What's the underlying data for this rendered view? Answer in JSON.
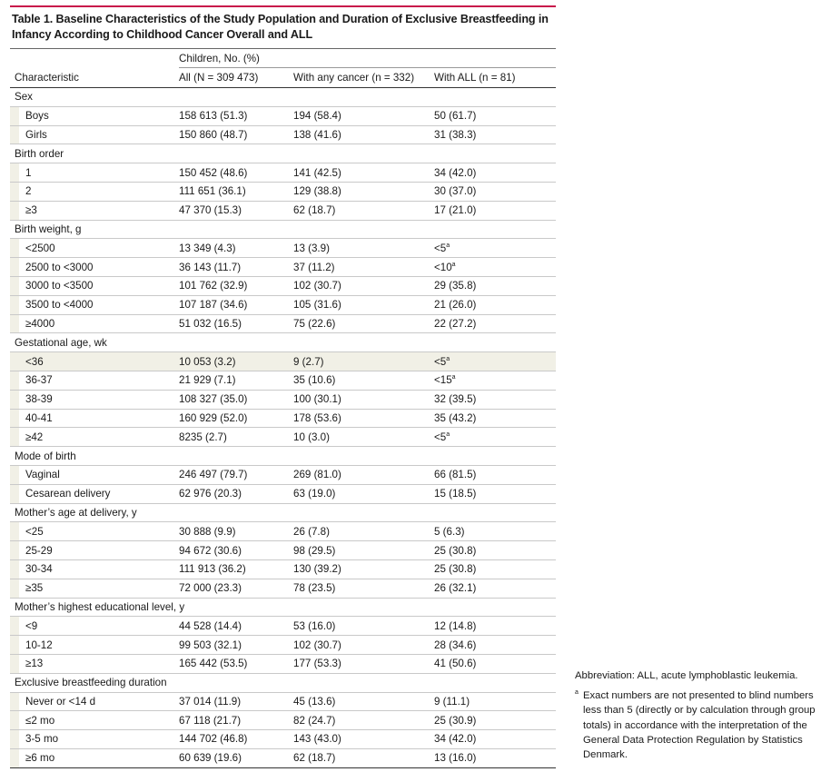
{
  "title": "Table 1. Baseline Characteristics of the Study Population and Duration of Exclusive Breastfeeding in Infancy According to Childhood Cancer Overall and ALL",
  "header": {
    "group": "Children, No. (%)",
    "characteristic": "Characteristic",
    "col1": "All (N = 309 473)",
    "col2": "With any cancer (n = 332)",
    "col3": "With ALL (n = 81)"
  },
  "rows": [
    {
      "type": "section",
      "label": "Sex"
    },
    {
      "type": "item",
      "label": "Boys",
      "v1": "158 613 (51.3)",
      "v2": "194 (58.4)",
      "v3": "50 (61.7)"
    },
    {
      "type": "item",
      "label": "Girls",
      "v1": "150 860 (48.7)",
      "v2": "138 (41.6)",
      "v3": "31 (38.3)"
    },
    {
      "type": "section",
      "label": "Birth order"
    },
    {
      "type": "item",
      "label": "1",
      "v1": "150 452 (48.6)",
      "v2": "141 (42.5)",
      "v3": "34 (42.0)"
    },
    {
      "type": "item",
      "label": "2",
      "v1": "111 651 (36.1)",
      "v2": "129 (38.8)",
      "v3": "30 (37.0)"
    },
    {
      "type": "item",
      "label": "≥3",
      "v1": "47 370 (15.3)",
      "v2": "62 (18.7)",
      "v3": "17 (21.0)"
    },
    {
      "type": "section",
      "label": "Birth weight, g"
    },
    {
      "type": "item",
      "label": "<2500",
      "v1": "13 349 (4.3)",
      "v2": "13 (3.9)",
      "v3": "<5",
      "v3sup": "a"
    },
    {
      "type": "item",
      "label": "2500 to <3000",
      "v1": "36 143 (11.7)",
      "v2": "37 (11.2)",
      "v3": "<10",
      "v3sup": "a"
    },
    {
      "type": "item",
      "label": "3000 to <3500",
      "v1": "101 762 (32.9)",
      "v2": "102 (30.7)",
      "v3": "29 (35.8)"
    },
    {
      "type": "item",
      "label": "3500 to <4000",
      "v1": "107 187 (34.6)",
      "v2": "105 (31.6)",
      "v3": "21 (26.0)"
    },
    {
      "type": "item",
      "label": "≥4000",
      "v1": "51 032 (16.5)",
      "v2": "75 (22.6)",
      "v3": "22 (27.2)"
    },
    {
      "type": "section",
      "label": "Gestational age, wk"
    },
    {
      "type": "item",
      "shade": true,
      "label": "<36",
      "v1": "10 053 (3.2)",
      "v2": "9 (2.7)",
      "v3": "<5",
      "v3sup": "a"
    },
    {
      "type": "item",
      "label": "36-37",
      "v1": "21 929 (7.1)",
      "v2": "35 (10.6)",
      "v3": "<15",
      "v3sup": "a"
    },
    {
      "type": "item",
      "label": "38-39",
      "v1": "108 327 (35.0)",
      "v2": "100 (30.1)",
      "v3": "32 (39.5)"
    },
    {
      "type": "item",
      "label": "40-41",
      "v1": "160 929 (52.0)",
      "v2": "178 (53.6)",
      "v3": "35 (43.2)"
    },
    {
      "type": "item",
      "label": "≥42",
      "v1": "8235 (2.7)",
      "v2": "10 (3.0)",
      "v3": "<5",
      "v3sup": "a"
    },
    {
      "type": "section",
      "label": "Mode of birth"
    },
    {
      "type": "item",
      "label": "Vaginal",
      "v1": "246 497 (79.7)",
      "v2": "269 (81.0)",
      "v3": "66 (81.5)"
    },
    {
      "type": "item",
      "label": "Cesarean delivery",
      "v1": "62 976 (20.3)",
      "v2": "63 (19.0)",
      "v3": "15 (18.5)"
    },
    {
      "type": "section",
      "label": "Mother’s age at delivery, y"
    },
    {
      "type": "item",
      "label": "<25",
      "v1": "30 888 (9.9)",
      "v2": "26 (7.8)",
      "v3": "5 (6.3)"
    },
    {
      "type": "item",
      "label": "25-29",
      "v1": "94 672 (30.6)",
      "v2": "98 (29.5)",
      "v3": "25 (30.8)"
    },
    {
      "type": "item",
      "label": "30-34",
      "v1": "111 913 (36.2)",
      "v2": "130 (39.2)",
      "v3": "25 (30.8)"
    },
    {
      "type": "item",
      "label": "≥35",
      "v1": "72 000 (23.3)",
      "v2": "78 (23.5)",
      "v3": "26 (32.1)"
    },
    {
      "type": "section",
      "label": "Mother’s highest educational level, y"
    },
    {
      "type": "item",
      "label": "<9",
      "v1": "44 528 (14.4)",
      "v2": "53 (16.0)",
      "v3": "12 (14.8)"
    },
    {
      "type": "item",
      "label": "10-12",
      "v1": "99 503 (32.1)",
      "v2": "102 (30.7)",
      "v3": "28 (34.6)"
    },
    {
      "type": "item",
      "label": "≥13",
      "v1": "165 442 (53.5)",
      "v2": "177 (53.3)",
      "v3": "41 (50.6)"
    },
    {
      "type": "section",
      "label": "Exclusive breastfeeding duration"
    },
    {
      "type": "item",
      "label": "Never or <14 d",
      "v1": "37 014 (11.9)",
      "v2": "45 (13.6)",
      "v3": "9 (11.1)"
    },
    {
      "type": "item",
      "label": "≤2 mo",
      "v1": "67 118 (21.7)",
      "v2": "82 (24.7)",
      "v3": "25 (30.9)"
    },
    {
      "type": "item",
      "label": "3-5 mo",
      "v1": "144 702 (46.8)",
      "v2": "143 (43.0)",
      "v3": "34 (42.0)"
    },
    {
      "type": "item",
      "label": "≥6 mo",
      "v1": "60 639 (19.6)",
      "v2": "62 (18.7)",
      "v3": "13 (16.0)"
    }
  ],
  "notes": {
    "abbreviation": "Abbreviation: ALL, acute lymphoblastic leukemia.",
    "footnote_mark": "a",
    "footnote_text": "Exact numbers are not presented to blind numbers less than 5 (directly or by calculation through group totals) in accordance with the interpretation of the General Data Protection Regulation by Statistics Denmark."
  },
  "colors": {
    "accent_rule": "#c8174b",
    "indent_shade": "#f1f0e6"
  }
}
